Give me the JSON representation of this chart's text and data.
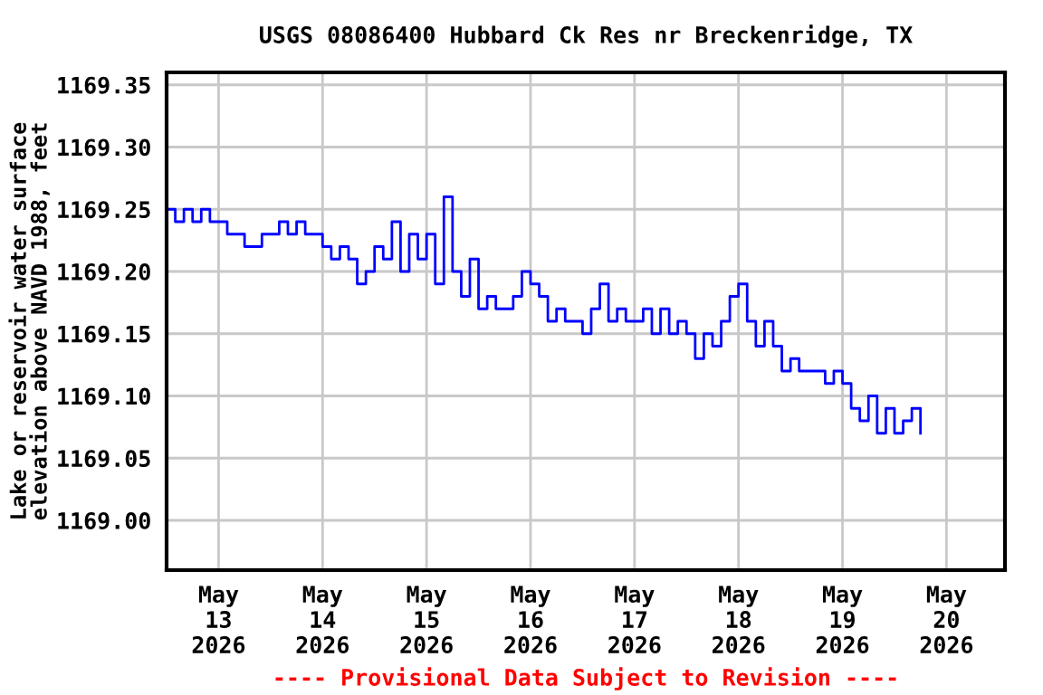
{
  "chart_data": {
    "type": "step",
    "title": "USGS 08086400 Hubbard Ck Res nr Breckenridge, TX",
    "ylabel": "Lake or reservoir water surface\nelevation above NAVD 1988, feet",
    "annotations": [
      "---- Provisional Data Subject to Revision ----"
    ],
    "x": [
      "2026-05-12T12:00",
      "2026-05-12T14:00",
      "2026-05-12T16:00",
      "2026-05-12T18:00",
      "2026-05-12T20:00",
      "2026-05-12T22:00",
      "2026-05-13T00:00",
      "2026-05-13T02:00",
      "2026-05-13T04:00",
      "2026-05-13T06:00",
      "2026-05-13T08:00",
      "2026-05-13T10:00",
      "2026-05-13T12:00",
      "2026-05-13T14:00",
      "2026-05-13T16:00",
      "2026-05-13T18:00",
      "2026-05-13T20:00",
      "2026-05-13T22:00",
      "2026-05-14T00:00",
      "2026-05-14T02:00",
      "2026-05-14T04:00",
      "2026-05-14T06:00",
      "2026-05-14T08:00",
      "2026-05-14T10:00",
      "2026-05-14T12:00",
      "2026-05-14T14:00",
      "2026-05-14T16:00",
      "2026-05-14T18:00",
      "2026-05-14T20:00",
      "2026-05-14T22:00",
      "2026-05-15T00:00",
      "2026-05-15T02:00",
      "2026-05-15T04:00",
      "2026-05-15T06:00",
      "2026-05-15T08:00",
      "2026-05-15T10:00",
      "2026-05-15T12:00",
      "2026-05-15T14:00",
      "2026-05-15T16:00",
      "2026-05-15T18:00",
      "2026-05-15T20:00",
      "2026-05-15T22:00",
      "2026-05-16T00:00",
      "2026-05-16T02:00",
      "2026-05-16T04:00",
      "2026-05-16T06:00",
      "2026-05-16T08:00",
      "2026-05-16T10:00",
      "2026-05-16T12:00",
      "2026-05-16T14:00",
      "2026-05-16T16:00",
      "2026-05-16T18:00",
      "2026-05-16T20:00",
      "2026-05-16T22:00",
      "2026-05-17T00:00",
      "2026-05-17T02:00",
      "2026-05-17T04:00",
      "2026-05-17T06:00",
      "2026-05-17T08:00",
      "2026-05-17T10:00",
      "2026-05-17T12:00",
      "2026-05-17T14:00",
      "2026-05-17T16:00",
      "2026-05-17T18:00",
      "2026-05-17T20:00",
      "2026-05-17T22:00",
      "2026-05-18T00:00",
      "2026-05-18T02:00",
      "2026-05-18T04:00",
      "2026-05-18T06:00",
      "2026-05-18T08:00",
      "2026-05-18T10:00",
      "2026-05-18T12:00",
      "2026-05-18T14:00",
      "2026-05-18T16:00",
      "2026-05-18T18:00",
      "2026-05-18T20:00",
      "2026-05-18T22:00",
      "2026-05-19T00:00",
      "2026-05-19T02:00",
      "2026-05-19T04:00",
      "2026-05-19T06:00",
      "2026-05-19T08:00",
      "2026-05-19T10:00",
      "2026-05-19T12:00",
      "2026-05-19T14:00",
      "2026-05-19T16:00",
      "2026-05-19T18:00"
    ],
    "series": [
      {
        "color": "#0000ff",
        "values": [
          1169.25,
          1169.24,
          1169.25,
          1169.24,
          1169.25,
          1169.24,
          1169.24,
          1169.23,
          1169.23,
          1169.22,
          1169.22,
          1169.23,
          1169.23,
          1169.24,
          1169.23,
          1169.24,
          1169.23,
          1169.23,
          1169.22,
          1169.21,
          1169.22,
          1169.21,
          1169.19,
          1169.2,
          1169.22,
          1169.21,
          1169.24,
          1169.2,
          1169.23,
          1169.21,
          1169.23,
          1169.19,
          1169.26,
          1169.2,
          1169.18,
          1169.21,
          1169.17,
          1169.18,
          1169.17,
          1169.17,
          1169.18,
          1169.2,
          1169.19,
          1169.18,
          1169.16,
          1169.17,
          1169.16,
          1169.16,
          1169.15,
          1169.17,
          1169.19,
          1169.16,
          1169.17,
          1169.16,
          1169.16,
          1169.17,
          1169.15,
          1169.17,
          1169.15,
          1169.16,
          1169.15,
          1169.13,
          1169.15,
          1169.14,
          1169.16,
          1169.18,
          1169.19,
          1169.16,
          1169.14,
          1169.16,
          1169.14,
          1169.12,
          1169.13,
          1169.12,
          1169.12,
          1169.12,
          1169.11,
          1169.12,
          1169.11,
          1169.09,
          1169.08,
          1169.1,
          1169.07,
          1169.09,
          1169.07,
          1169.08,
          1169.09,
          1169.07
        ]
      }
    ],
    "xlim": [
      "2026-05-12T12:00",
      "2026-05-20T13:30"
    ],
    "xticks": [
      {
        "value": "2026-05-13",
        "label": "May\n13\n2026"
      },
      {
        "value": "2026-05-14",
        "label": "May\n14\n2026"
      },
      {
        "value": "2026-05-15",
        "label": "May\n15\n2026"
      },
      {
        "value": "2026-05-16",
        "label": "May\n16\n2026"
      },
      {
        "value": "2026-05-17",
        "label": "May\n17\n2026"
      },
      {
        "value": "2026-05-18",
        "label": "May\n18\n2026"
      },
      {
        "value": "2026-05-19",
        "label": "May\n19\n2026"
      },
      {
        "value": "2026-05-20",
        "label": "May\n20\n2026"
      }
    ],
    "ylim": [
      1168.96,
      1169.36
    ],
    "yticks": [
      {
        "value": 1169.0,
        "label": "1169.00"
      },
      {
        "value": 1169.05,
        "label": "1169.05"
      },
      {
        "value": 1169.1,
        "label": "1169.10"
      },
      {
        "value": 1169.15,
        "label": "1169.15"
      },
      {
        "value": 1169.2,
        "label": "1169.20"
      },
      {
        "value": 1169.25,
        "label": "1169.25"
      },
      {
        "value": 1169.3,
        "label": "1169.30"
      },
      {
        "value": 1169.35,
        "label": "1169.35"
      }
    ],
    "grid": true
  }
}
